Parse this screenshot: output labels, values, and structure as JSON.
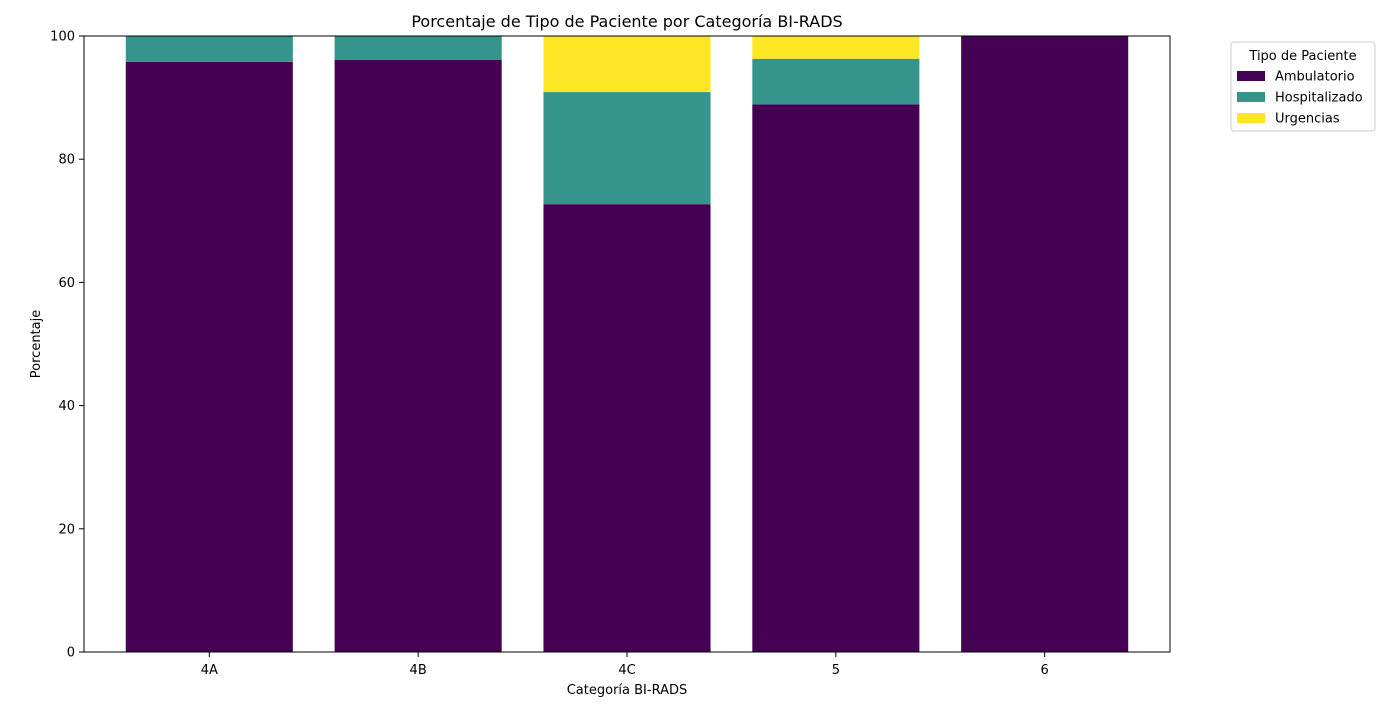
{
  "chart_data": {
    "type": "bar",
    "stacked": true,
    "title": "Porcentaje de Tipo de Paciente por Categoría BI-RADS",
    "xlabel": "Categoría BI-RADS",
    "ylabel": "Porcentaje",
    "categories": [
      "4A",
      "4B",
      "4C",
      "5",
      "6"
    ],
    "ylim": [
      0,
      100
    ],
    "yticks": [
      0,
      20,
      40,
      60,
      80,
      100
    ],
    "grid": false,
    "legend": {
      "title": "Tipo de Paciente",
      "placement": "outside-top-right"
    },
    "series": [
      {
        "name": "Ambulatorio",
        "color": "#440154",
        "values": [
          95.8,
          96.1,
          72.7,
          88.9,
          100
        ]
      },
      {
        "name": "Hospitalizado",
        "color": "#35948c",
        "values": [
          4.2,
          3.9,
          18.2,
          7.4,
          0
        ]
      },
      {
        "name": "Urgencias",
        "color": "#fde725",
        "values": [
          0,
          0,
          9.1,
          3.7,
          0
        ]
      }
    ]
  }
}
